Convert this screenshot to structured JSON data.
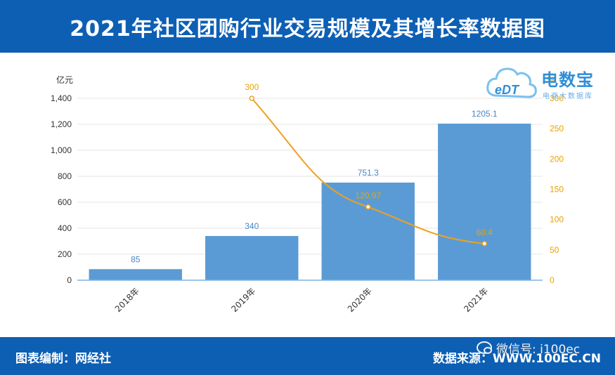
{
  "header": {
    "title": "2021年社区团购行业交易规模及其增长率数据图"
  },
  "footer": {
    "credit": "图表编制：网经社",
    "source": "数据来源：WWW.100EC.CN",
    "wechat": "微信号: i100ec"
  },
  "logo": {
    "name": "电数宝",
    "sub": "电商大数据库",
    "mark": "eDT"
  },
  "colors": {
    "header_bg": "#0d5fb4",
    "bar": "#5b9bd5",
    "line": "#f0a020",
    "left_axis_text": "#333333",
    "right_axis_text": "#e8a300"
  },
  "chart_data": {
    "type": "bar",
    "categories": [
      "2018年",
      "2019年",
      "2020年",
      "2021年"
    ],
    "series": [
      {
        "values": [
          85,
          340,
          751.3,
          1205.1
        ],
        "labels": [
          "85",
          "340",
          "751.3",
          "1205.1"
        ],
        "axis": "left",
        "type": "bar"
      },
      {
        "values": [
          null,
          300,
          120.97,
          60.4
        ],
        "labels": [
          "",
          "300",
          "120.97",
          "60.4"
        ],
        "axis": "right",
        "type": "line"
      }
    ],
    "y_left": {
      "unit": "亿元",
      "ylim": [
        0,
        1400
      ],
      "ticks": [
        0,
        200,
        400,
        600,
        800,
        1000,
        1200,
        1400
      ],
      "tick_labels": [
        "0",
        "200",
        "400",
        "600",
        "800",
        "1,000",
        "1,200",
        "1,400"
      ]
    },
    "y_right": {
      "unit": "%",
      "ylim": [
        0,
        300
      ],
      "ticks": [
        0,
        50,
        100,
        150,
        200,
        250,
        300
      ],
      "tick_labels": [
        "0",
        "50",
        "100",
        "150",
        "200",
        "250",
        "300"
      ]
    },
    "grid": true
  }
}
